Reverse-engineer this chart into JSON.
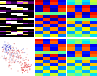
{
  "background": "#e8e8e8",
  "heatmap_B": {
    "data": [
      [
        0.95,
        0.05,
        0.9,
        0.1
      ],
      [
        0.9,
        0.1,
        0.85,
        0.15
      ],
      [
        0.05,
        0.95,
        0.1,
        0.9
      ],
      [
        0.05,
        0.9,
        0.05,
        0.85
      ],
      [
        0.5,
        0.5,
        0.45,
        0.5
      ],
      [
        0.85,
        0.05,
        0.95,
        0.05
      ],
      [
        0.1,
        0.85,
        0.05,
        0.9
      ],
      [
        0.8,
        0.1,
        0.85,
        0.1
      ],
      [
        0.15,
        0.8,
        0.1,
        0.8
      ],
      [
        0.7,
        0.2,
        0.75,
        0.15
      ],
      [
        0.2,
        0.7,
        0.15,
        0.75
      ],
      [
        0.6,
        0.3,
        0.65,
        0.25
      ]
    ],
    "colormap": "RdYlGn_r"
  },
  "heatmap_C": {
    "data": [
      [
        0.4,
        0.55,
        0.35,
        0.6
      ],
      [
        0.35,
        0.5,
        0.3,
        0.55
      ],
      [
        0.85,
        0.1,
        0.9,
        0.05
      ],
      [
        0.8,
        0.15,
        0.85,
        0.1
      ],
      [
        0.1,
        0.85,
        0.05,
        0.9
      ],
      [
        0.05,
        0.8,
        0.1,
        0.85
      ],
      [
        0.55,
        0.45,
        0.5,
        0.4
      ],
      [
        0.7,
        0.2,
        0.75,
        0.15
      ],
      [
        0.2,
        0.7,
        0.15,
        0.75
      ],
      [
        0.6,
        0.3,
        0.65,
        0.25
      ],
      [
        0.3,
        0.6,
        0.25,
        0.65
      ],
      [
        0.5,
        0.4,
        0.55,
        0.35
      ]
    ],
    "colormap": "RdYlGn_r"
  },
  "heatmap_E": {
    "data": [
      [
        0.9,
        0.1,
        0.85,
        0.15
      ],
      [
        0.85,
        0.15,
        0.8,
        0.1
      ],
      [
        0.1,
        0.9,
        0.15,
        0.85
      ],
      [
        0.15,
        0.85,
        0.1,
        0.8
      ],
      [
        0.5,
        0.5,
        0.55,
        0.45
      ],
      [
        0.8,
        0.1,
        0.9,
        0.05
      ],
      [
        0.05,
        0.8,
        0.1,
        0.85
      ],
      [
        0.7,
        0.2,
        0.75,
        0.15
      ],
      [
        0.2,
        0.7,
        0.15,
        0.7
      ],
      [
        0.6,
        0.3,
        0.65,
        0.25
      ],
      [
        0.25,
        0.65,
        0.2,
        0.6
      ],
      [
        0.55,
        0.35,
        0.6,
        0.3
      ]
    ],
    "colormap": "RdYlGn_r"
  },
  "heatmap_F": {
    "data": [
      [
        0.45,
        0.5,
        0.4,
        0.55
      ],
      [
        0.4,
        0.55,
        0.35,
        0.5
      ],
      [
        0.8,
        0.15,
        0.85,
        0.1
      ],
      [
        0.75,
        0.2,
        0.8,
        0.15
      ],
      [
        0.1,
        0.8,
        0.15,
        0.85
      ],
      [
        0.15,
        0.75,
        0.1,
        0.8
      ],
      [
        0.5,
        0.45,
        0.55,
        0.4
      ],
      [
        0.65,
        0.25,
        0.7,
        0.2
      ],
      [
        0.25,
        0.65,
        0.2,
        0.7
      ],
      [
        0.55,
        0.35,
        0.6,
        0.3
      ],
      [
        0.35,
        0.55,
        0.3,
        0.6
      ],
      [
        0.5,
        0.4,
        0.55,
        0.35
      ]
    ],
    "colormap": "RdYlGn_r"
  },
  "panel_A_cols": 6,
  "panel_A_rows": 24,
  "scatter_bg": "#f0f0f0",
  "colorbar_colors_hot": [
    "#ff0000",
    "#ff8800",
    "#ffff00",
    "#00cc00",
    "#0000ff"
  ],
  "colorbar_colors_cool": [
    "#0000ff",
    "#4444ff",
    "#aaaaff",
    "#ffaaaa",
    "#ff4444",
    "#ff0000"
  ]
}
